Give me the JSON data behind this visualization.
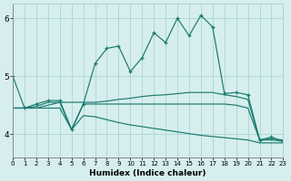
{
  "xlabel": "Humidex (Indice chaleur)",
  "bg_color": "#d6eeee",
  "grid_color": "#aad4d4",
  "line_color": "#1a7a6e",
  "xlim": [
    0,
    23
  ],
  "ylim": [
    3.6,
    6.25
  ],
  "yticks": [
    4,
    5,
    6
  ],
  "xticks": [
    0,
    1,
    2,
    3,
    4,
    5,
    6,
    7,
    8,
    9,
    10,
    11,
    12,
    13,
    14,
    15,
    16,
    17,
    18,
    19,
    20,
    21,
    22,
    23
  ],
  "line1_x": [
    0,
    1,
    2,
    3,
    4,
    5,
    6,
    7,
    8,
    9,
    10,
    11,
    12,
    13,
    14,
    15,
    16,
    17,
    18,
    19,
    20,
    21,
    22,
    23
  ],
  "line1_y": [
    5.0,
    4.45,
    4.52,
    4.58,
    4.58,
    4.08,
    4.52,
    5.22,
    5.48,
    5.52,
    5.08,
    5.32,
    5.75,
    5.58,
    6.0,
    5.7,
    6.05,
    5.85,
    4.7,
    4.72,
    4.68,
    3.9,
    3.95,
    3.88
  ],
  "line2_x": [
    0,
    1,
    2,
    3,
    4,
    5,
    6,
    7,
    8,
    9,
    10,
    11,
    12,
    13,
    14,
    15,
    16,
    17,
    18,
    19,
    20,
    21,
    22,
    23
  ],
  "line2_y": [
    4.45,
    4.45,
    4.48,
    4.55,
    4.55,
    4.55,
    4.55,
    4.55,
    4.57,
    4.6,
    4.62,
    4.65,
    4.67,
    4.68,
    4.7,
    4.72,
    4.72,
    4.72,
    4.68,
    4.65,
    4.6,
    3.9,
    3.92,
    3.9
  ],
  "line3_x": [
    0,
    1,
    2,
    3,
    4,
    5,
    6,
    7,
    8,
    9,
    10,
    11,
    12,
    13,
    14,
    15,
    16,
    17,
    18,
    19,
    20,
    21,
    22,
    23
  ],
  "line3_y": [
    4.45,
    4.45,
    4.45,
    4.45,
    4.45,
    4.08,
    4.32,
    4.3,
    4.25,
    4.2,
    4.16,
    4.13,
    4.1,
    4.07,
    4.04,
    4.01,
    3.98,
    3.96,
    3.94,
    3.92,
    3.9,
    3.85,
    3.85,
    3.85
  ],
  "line4_x": [
    0,
    1,
    2,
    3,
    4,
    5,
    6,
    7,
    8,
    9,
    10,
    11,
    12,
    13,
    14,
    15,
    16,
    17,
    18,
    19,
    20,
    21,
    22,
    23
  ],
  "line4_y": [
    4.45,
    4.45,
    4.45,
    4.5,
    4.55,
    4.08,
    4.52,
    4.52,
    4.52,
    4.52,
    4.52,
    4.52,
    4.52,
    4.52,
    4.52,
    4.52,
    4.52,
    4.52,
    4.52,
    4.5,
    4.45,
    3.9,
    3.9,
    3.88
  ]
}
